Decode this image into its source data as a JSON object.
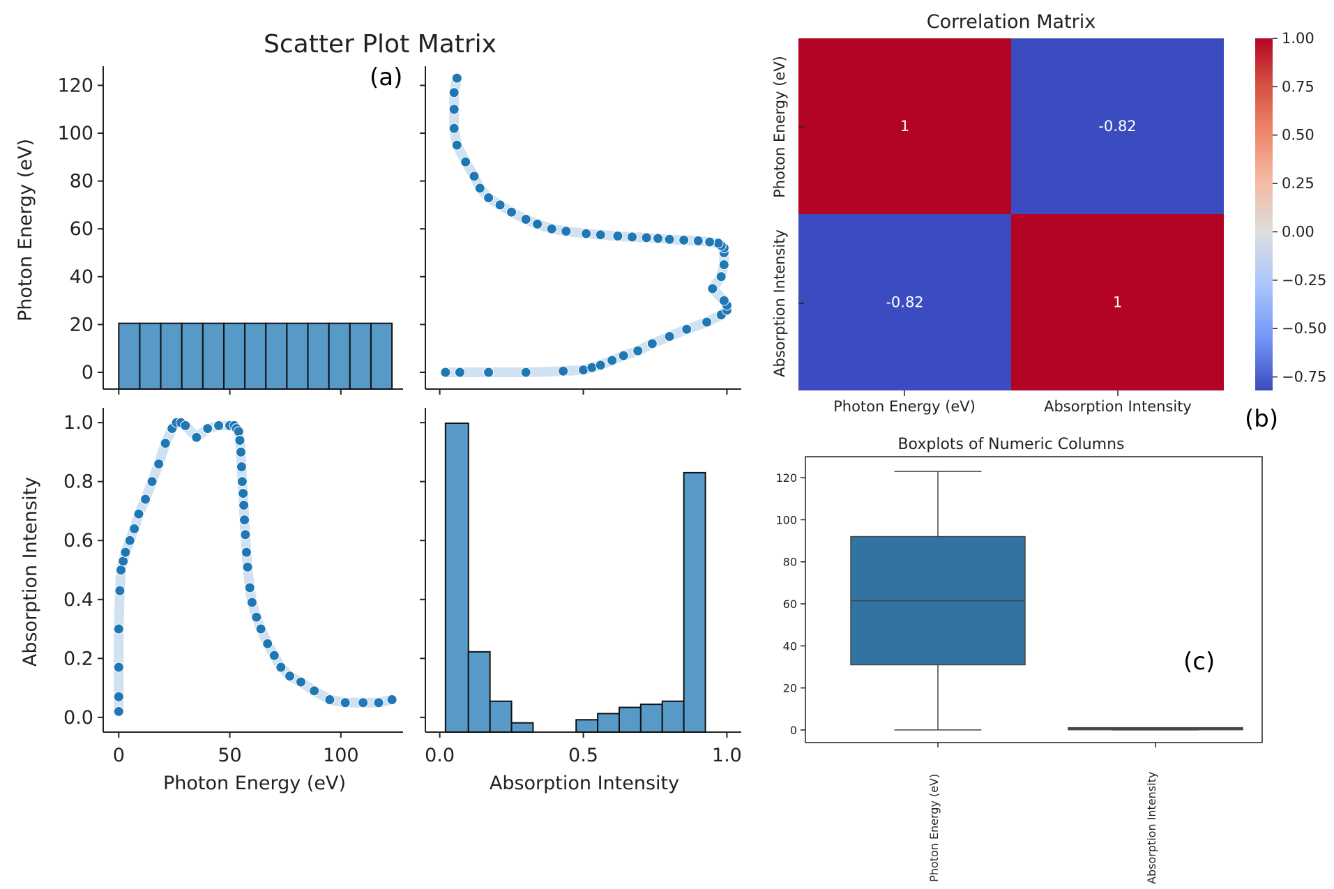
{
  "chart_data": [
    {
      "id": "a",
      "type": "scatter",
      "title": "Scatter Plot Matrix",
      "panel_label": "(a)",
      "variables": [
        "Photon Energy (eV)",
        "Absorption Intensity"
      ],
      "pe_ticks": [
        "0",
        "20",
        "40",
        "60",
        "80",
        "100",
        "120"
      ],
      "pe_ticks_x": [
        "0",
        "50",
        "100"
      ],
      "ai_ticks": [
        "0.0",
        "0.2",
        "0.4",
        "0.6",
        "0.8",
        "1.0"
      ],
      "ai_ticks_x": [
        "0.0",
        "0.5",
        "1.0"
      ],
      "pe_range": [
        -7,
        128
      ],
      "ai_range": [
        -0.05,
        1.05
      ],
      "pe_histogram": {
        "bin_edges": [
          0,
          9.46,
          18.92,
          28.38,
          37.85,
          47.31,
          56.77,
          66.23,
          75.69,
          85.15,
          94.62,
          104.08,
          113.54,
          123
        ],
        "counts_relative": [
          1,
          1,
          1,
          1,
          1,
          1,
          1,
          1,
          1,
          1,
          1,
          1,
          1
        ]
      },
      "ai_histogram": {
        "bin_edges": [
          0.02,
          0.1,
          0.175,
          0.25,
          0.325,
          0.4,
          0.475,
          0.55,
          0.625,
          0.7,
          0.775,
          0.85,
          0.925,
          1.0
        ],
        "counts_relative": [
          1.0,
          0.26,
          0.1,
          0.03,
          0.0,
          0.0,
          0.04,
          0.06,
          0.08,
          0.09,
          0.1,
          0.84,
          0.0
        ]
      },
      "points": {
        "photon_energy": [
          0,
          0,
          0,
          0,
          0.5,
          1,
          2,
          3,
          5,
          7,
          9,
          12,
          15,
          18,
          21,
          24,
          26,
          28,
          30,
          35,
          40,
          45,
          50,
          52,
          53,
          54,
          54.5,
          55,
          55.3,
          55.6,
          56,
          56.3,
          56.6,
          57,
          57.5,
          58,
          59,
          60,
          62,
          64,
          67,
          70,
          73,
          77,
          82,
          88,
          95,
          102,
          110,
          117,
          123
        ],
        "absorption": [
          0.02,
          0.07,
          0.17,
          0.3,
          0.43,
          0.5,
          0.53,
          0.56,
          0.6,
          0.64,
          0.69,
          0.74,
          0.8,
          0.86,
          0.93,
          0.98,
          1.0,
          1.0,
          0.99,
          0.95,
          0.98,
          0.99,
          0.99,
          0.99,
          0.98,
          0.97,
          0.94,
          0.9,
          0.85,
          0.8,
          0.76,
          0.72,
          0.67,
          0.62,
          0.56,
          0.51,
          0.44,
          0.39,
          0.34,
          0.3,
          0.25,
          0.21,
          0.17,
          0.14,
          0.12,
          0.09,
          0.06,
          0.05,
          0.05,
          0.05,
          0.06
        ]
      }
    },
    {
      "id": "b",
      "type": "heatmap",
      "title": "Correlation Matrix",
      "panel_label": "(b)",
      "labels": [
        "Photon Energy (eV)",
        "Absorption Intensity"
      ],
      "matrix": [
        [
          1,
          -0.82
        ],
        [
          -0.82,
          1
        ]
      ],
      "cell_text": [
        [
          "1",
          "-0.82"
        ],
        [
          "-0.82",
          "1"
        ]
      ],
      "colorbar_range": [
        -0.82,
        1.0
      ],
      "colorbar_ticks": [
        "1.00",
        "0.75",
        "0.50",
        "0.25",
        "0.00",
        "−0.25",
        "−0.50",
        "−0.75"
      ],
      "colorbar_values": [
        1.0,
        0.75,
        0.5,
        0.25,
        0.0,
        -0.25,
        -0.5,
        -0.75
      ],
      "colors": {
        "high": "#b40426",
        "low": "#3b4cc0",
        "mid": "#dddddd"
      }
    },
    {
      "id": "c",
      "type": "boxplot",
      "title": "Boxplots of Numeric Columns",
      "panel_label": "(c)",
      "categories": [
        "Photon Energy (eV)",
        "Absorption Intensity"
      ],
      "y_ticks": [
        "0",
        "20",
        "40",
        "60",
        "80",
        "100",
        "120"
      ],
      "ylim": [
        -6,
        130
      ],
      "boxes": [
        {
          "name": "Photon Energy (eV)",
          "min": 0,
          "q1": 31,
          "median": 61.5,
          "q3": 92,
          "max": 123
        },
        {
          "name": "Absorption Intensity",
          "min": 0.02,
          "q1": 0.1,
          "median": 0.6,
          "q3": 0.95,
          "max": 1.0
        }
      ],
      "color": "#3274a1"
    }
  ],
  "colors": {
    "point": "#1f77b4",
    "bar": "#5799c7",
    "halo": "#d0e2f1"
  }
}
